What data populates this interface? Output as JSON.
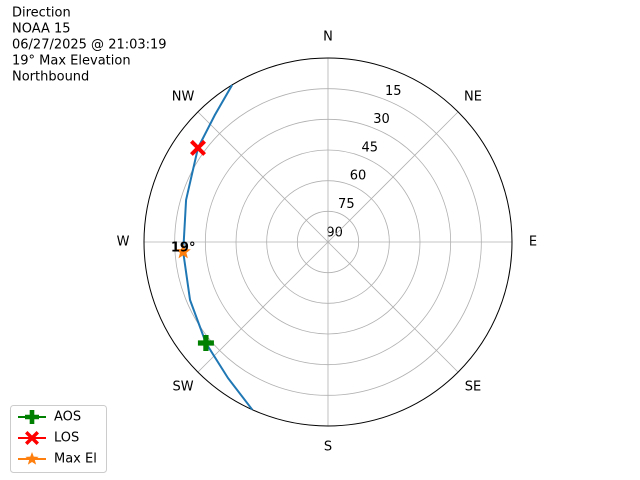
{
  "chart_data": {
    "type": "polar",
    "title": [
      "Direction",
      "NOAA 15",
      "06/27/2025 @ 21:03:19",
      "19° Max Elevation",
      "Northbound"
    ],
    "rlim": [
      90,
      0
    ],
    "rticks": [
      15,
      30,
      45,
      60,
      75,
      90
    ],
    "thetaticks": [
      {
        "value": 0,
        "label": "N"
      },
      {
        "value": 45,
        "label": "NE"
      },
      {
        "value": 90,
        "label": "E"
      },
      {
        "value": 135,
        "label": "SE"
      },
      {
        "value": 180,
        "label": "S"
      },
      {
        "value": 225,
        "label": "SW"
      },
      {
        "value": 270,
        "label": "W"
      },
      {
        "value": 315,
        "label": "NW"
      }
    ],
    "grid": true,
    "legend": "lower left",
    "series": [
      {
        "color": "#1f77b4",
        "marker": "line",
        "x": [
          204.3,
          216.3,
          230.4,
          247.2,
          266.1,
          286.5,
          305.9,
          318.3,
          328.6
        ],
        "values": [
          0,
          7.4,
          12.5,
          16.8,
          19,
          17.6,
          11.5,
          6.8,
          0
        ]
      },
      {
        "name": "AOS",
        "color": "#008000",
        "marker": "plus",
        "x": [
          230.4
        ],
        "values": [
          12.5
        ]
      },
      {
        "name": "LOS",
        "color": "#ff0000",
        "marker": "x",
        "x": [
          305.9
        ],
        "values": [
          11.5
        ]
      },
      {
        "name": "Max El",
        "color": "#ff7f0e",
        "marker": "star",
        "x": [
          266.1
        ],
        "values": [
          19
        ]
      }
    ],
    "annotations": [
      {
        "text": "19°",
        "x": 266.1,
        "y": 19
      }
    ]
  }
}
